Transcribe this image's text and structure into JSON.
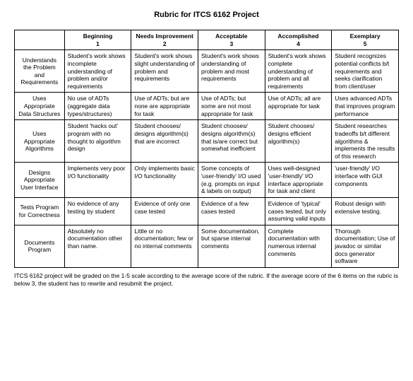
{
  "title": "Rubric for ITCS 6162 Project",
  "columns": [
    {
      "label": "",
      "sub": ""
    },
    {
      "label": "Beginning",
      "sub": "1"
    },
    {
      "label": "Needs Improvement",
      "sub": "2"
    },
    {
      "label": "Acceptable",
      "sub": "3"
    },
    {
      "label": "Accomplished",
      "sub": "4"
    },
    {
      "label": "Exemplary",
      "sub": "5"
    }
  ],
  "rows": [
    {
      "label": "Understands the Problem and Requirements",
      "cells": [
        "Student's work shows incomplete understanding of problem and/or requirements",
        "Student's work shows slight understanding of problem and requirements",
        "Student's work shows understanding of problem and most requirements",
        "Student's work shows complete understanding of problem and all requirements",
        "Student recognizes potential conflicts b/t requirements and seeks clarification from client/user"
      ]
    },
    {
      "label": "Uses Appropriate Data Structures",
      "cells": [
        "No use of ADTs (aggregate data types/structures)",
        "Use of ADTs; but are none are appropriate for task",
        "Use of ADTs; but some are not most appropriate for task",
        "Use of ADTs; all are appropriate for task",
        "Uses advanced ADTs that improves program performance"
      ]
    },
    {
      "label": "Uses Appropriate Algorithms",
      "cells": [
        "Student 'hacks out' program with no thought to algorithm design",
        "Student chooses/ designs algorithm(s) that are incorrect",
        "Student chooses/ designs algorithm(s) that is/are correct but somewhat inefficient",
        "Student chooses/ designs efficient algorithm(s)",
        "Student researches tradeoffs b/t different algorithms & implements the results of this research"
      ]
    },
    {
      "label": "Designs Appropriate User Interface",
      "cells": [
        "Implements very poor I/O functionality",
        "Only implements basic I/O functionality",
        "Some concepts of 'user-friendly' I/O used (e.g. prompts on input & labels on output)",
        "Uses well-designed 'user-friendly' I/O interface appropriate for task and client",
        "'user-friendly' I/O interface with GUI components"
      ]
    },
    {
      "label": "Tests Program for Correctness",
      "cells": [
        "No evidence of any testing by student",
        "Evidence of only one case tested",
        "Evidence of a few cases tested",
        "Evidence of 'typical' cases tested, but only assuming valid inputs",
        "Robust design with extensive testing."
      ]
    },
    {
      "label": "Documents Program",
      "cells": [
        "Absolutely no documentation other than name.",
        "Little or no documentation; few or no internal comments",
        "Some documentation, but sparse internal comments",
        "Complete documentation with numerous internal comments",
        "Thorough documentation; Use of javadoc or similar docs generator software"
      ]
    }
  ],
  "footnote": "ITCS 6162 project will be graded on the 1-5 scale according to the average score of the rubric. If the average score of the 6 items on the rubric is below 3, the student has to rewrite and resubmit the project."
}
